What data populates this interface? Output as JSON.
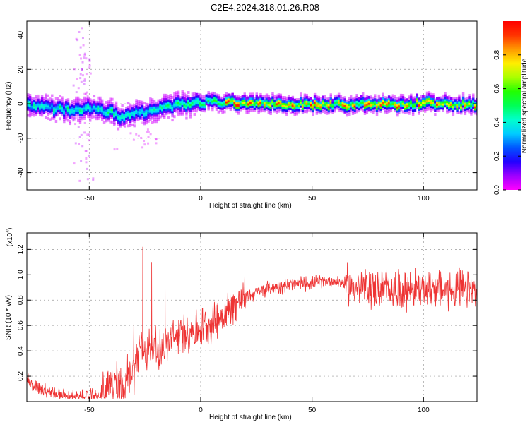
{
  "title": "C2E4.2024.318.01.26.R08",
  "colormap": [
    "#ff00ff",
    "#9d00ff",
    "#2200ff",
    "#0055ff",
    "#00ccff",
    "#00ffcc",
    "#00ff55",
    "#22ff00",
    "#aaff00",
    "#ffee00",
    "#ff9900",
    "#ff3300",
    "#ff0000"
  ],
  "chart_data": [
    {
      "type": "heatmap",
      "xlabel": "Height of straight line (km)",
      "ylabel": "Frequency (Hz)",
      "xlim": [
        -78,
        124
      ],
      "ylim": [
        -50,
        48
      ],
      "xticks": [
        -50,
        0,
        50,
        100
      ],
      "yticks": [
        -40,
        -20,
        0,
        20,
        40
      ],
      "ridge_x": [
        -78,
        -70,
        -60,
        -55,
        -50,
        -45,
        -40,
        -35,
        -30,
        -25,
        -20,
        -15,
        -10,
        -5,
        0,
        5,
        10,
        20,
        30,
        40,
        50,
        60,
        70,
        80,
        90,
        100,
        110,
        124
      ],
      "ridge_y": [
        0,
        -2,
        -3,
        -4,
        -1,
        -4,
        -4,
        -8,
        -5,
        -4,
        -2,
        -2,
        0,
        0,
        1,
        2,
        1,
        1,
        1,
        0,
        0,
        0,
        0,
        0,
        0,
        1,
        0,
        0
      ],
      "colorbar": {
        "label": "Normalized spectral amplitude",
        "range": [
          0,
          1
        ],
        "ticks": [
          0.0,
          0.2,
          0.4,
          0.6,
          0.8
        ]
      },
      "grid": true
    },
    {
      "type": "line",
      "xlabel": "Height of straight line (km)",
      "ylabel": "SNR (10 * v/v)",
      "y_multiplier_label": "(x10",
      "y_multiplier_exp": "4",
      "y_multiplier_close": ")",
      "xlim": [
        -78,
        124
      ],
      "ylim": [
        0.0,
        1.33
      ],
      "xticks": [
        -50,
        0,
        50,
        100
      ],
      "yticks": [
        0.2,
        0.4,
        0.6,
        0.8,
        1.0,
        1.2
      ],
      "color": "#ee3333",
      "series": [
        {
          "x": [
            -78,
            -75,
            -70,
            -65,
            -60,
            -55,
            -50,
            -45,
            -40,
            -35,
            -30,
            -27,
            -25,
            -22,
            -20,
            -15,
            -10,
            -5,
            0,
            5,
            10,
            15,
            20,
            25,
            30,
            35,
            40,
            45,
            50,
            55,
            60,
            65,
            70,
            75,
            80,
            85,
            90,
            95,
            100,
            105,
            110,
            115,
            124
          ],
          "values": [
            0.18,
            0.12,
            0.1,
            0.06,
            0.04,
            0.03,
            0.04,
            0.04,
            0.12,
            0.15,
            0.25,
            0.45,
            0.4,
            0.45,
            0.4,
            0.45,
            0.52,
            0.55,
            0.58,
            0.62,
            0.68,
            0.76,
            0.82,
            0.86,
            0.89,
            0.91,
            0.92,
            0.93,
            0.94,
            0.95,
            0.95,
            0.93,
            0.9,
            0.9,
            0.88,
            0.9,
            0.88,
            0.89,
            0.88,
            0.9,
            0.88,
            0.88,
            0.87
          ]
        }
      ],
      "spikes": [
        {
          "x": -26,
          "y": 1.22
        },
        {
          "x": -22,
          "y": 1.1
        },
        {
          "x": -16,
          "y": 1.07
        },
        {
          "x": -30,
          "y": 0.62
        }
      ],
      "grid": true
    }
  ]
}
